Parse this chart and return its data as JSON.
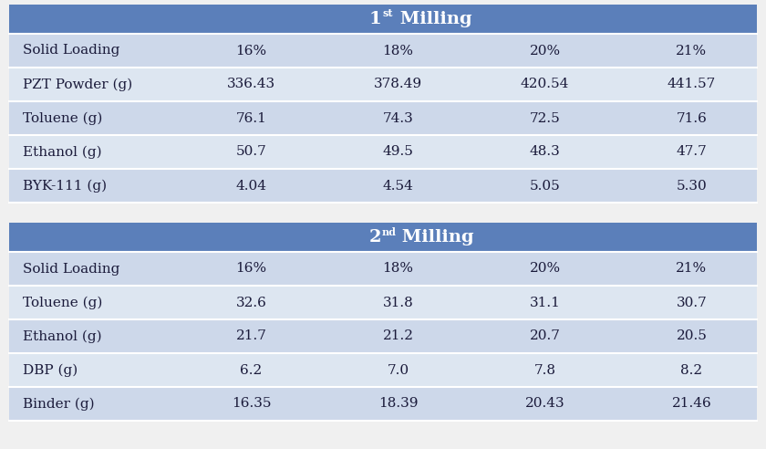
{
  "header_color": "#5b7fba",
  "header_text_color": "#ffffff",
  "row_color_a": "#cdd8ea",
  "row_color_b": "#dde6f1",
  "bg_color": "#f0f0f0",
  "text_color": "#1a1a3a",
  "table1_rows": [
    [
      "Solid Loading",
      "16%",
      "18%",
      "20%",
      "21%"
    ],
    [
      "PZT Powder (g)",
      "336.43",
      "378.49",
      "420.54",
      "441.57"
    ],
    [
      "Toluene (g)",
      "76.1",
      "74.3",
      "72.5",
      "71.6"
    ],
    [
      "Ethanol (g)",
      "50.7",
      "49.5",
      "48.3",
      "47.7"
    ],
    [
      "BYK-111 (g)",
      "4.04",
      "4.54",
      "5.05",
      "5.30"
    ]
  ],
  "table2_rows": [
    [
      "Solid Loading",
      "16%",
      "18%",
      "20%",
      "21%"
    ],
    [
      "Toluene (g)",
      "32.6",
      "31.8",
      "31.1",
      "30.7"
    ],
    [
      "Ethanol (g)",
      "21.7",
      "21.2",
      "20.7",
      "20.5"
    ],
    [
      "DBP (g)",
      "6.2",
      "7.0",
      "7.8",
      "8.2"
    ],
    [
      "Binder (g)",
      "16.35",
      "18.39",
      "20.43",
      "21.46"
    ]
  ],
  "figsize": [
    8.4,
    4.92
  ],
  "dpi": 100
}
